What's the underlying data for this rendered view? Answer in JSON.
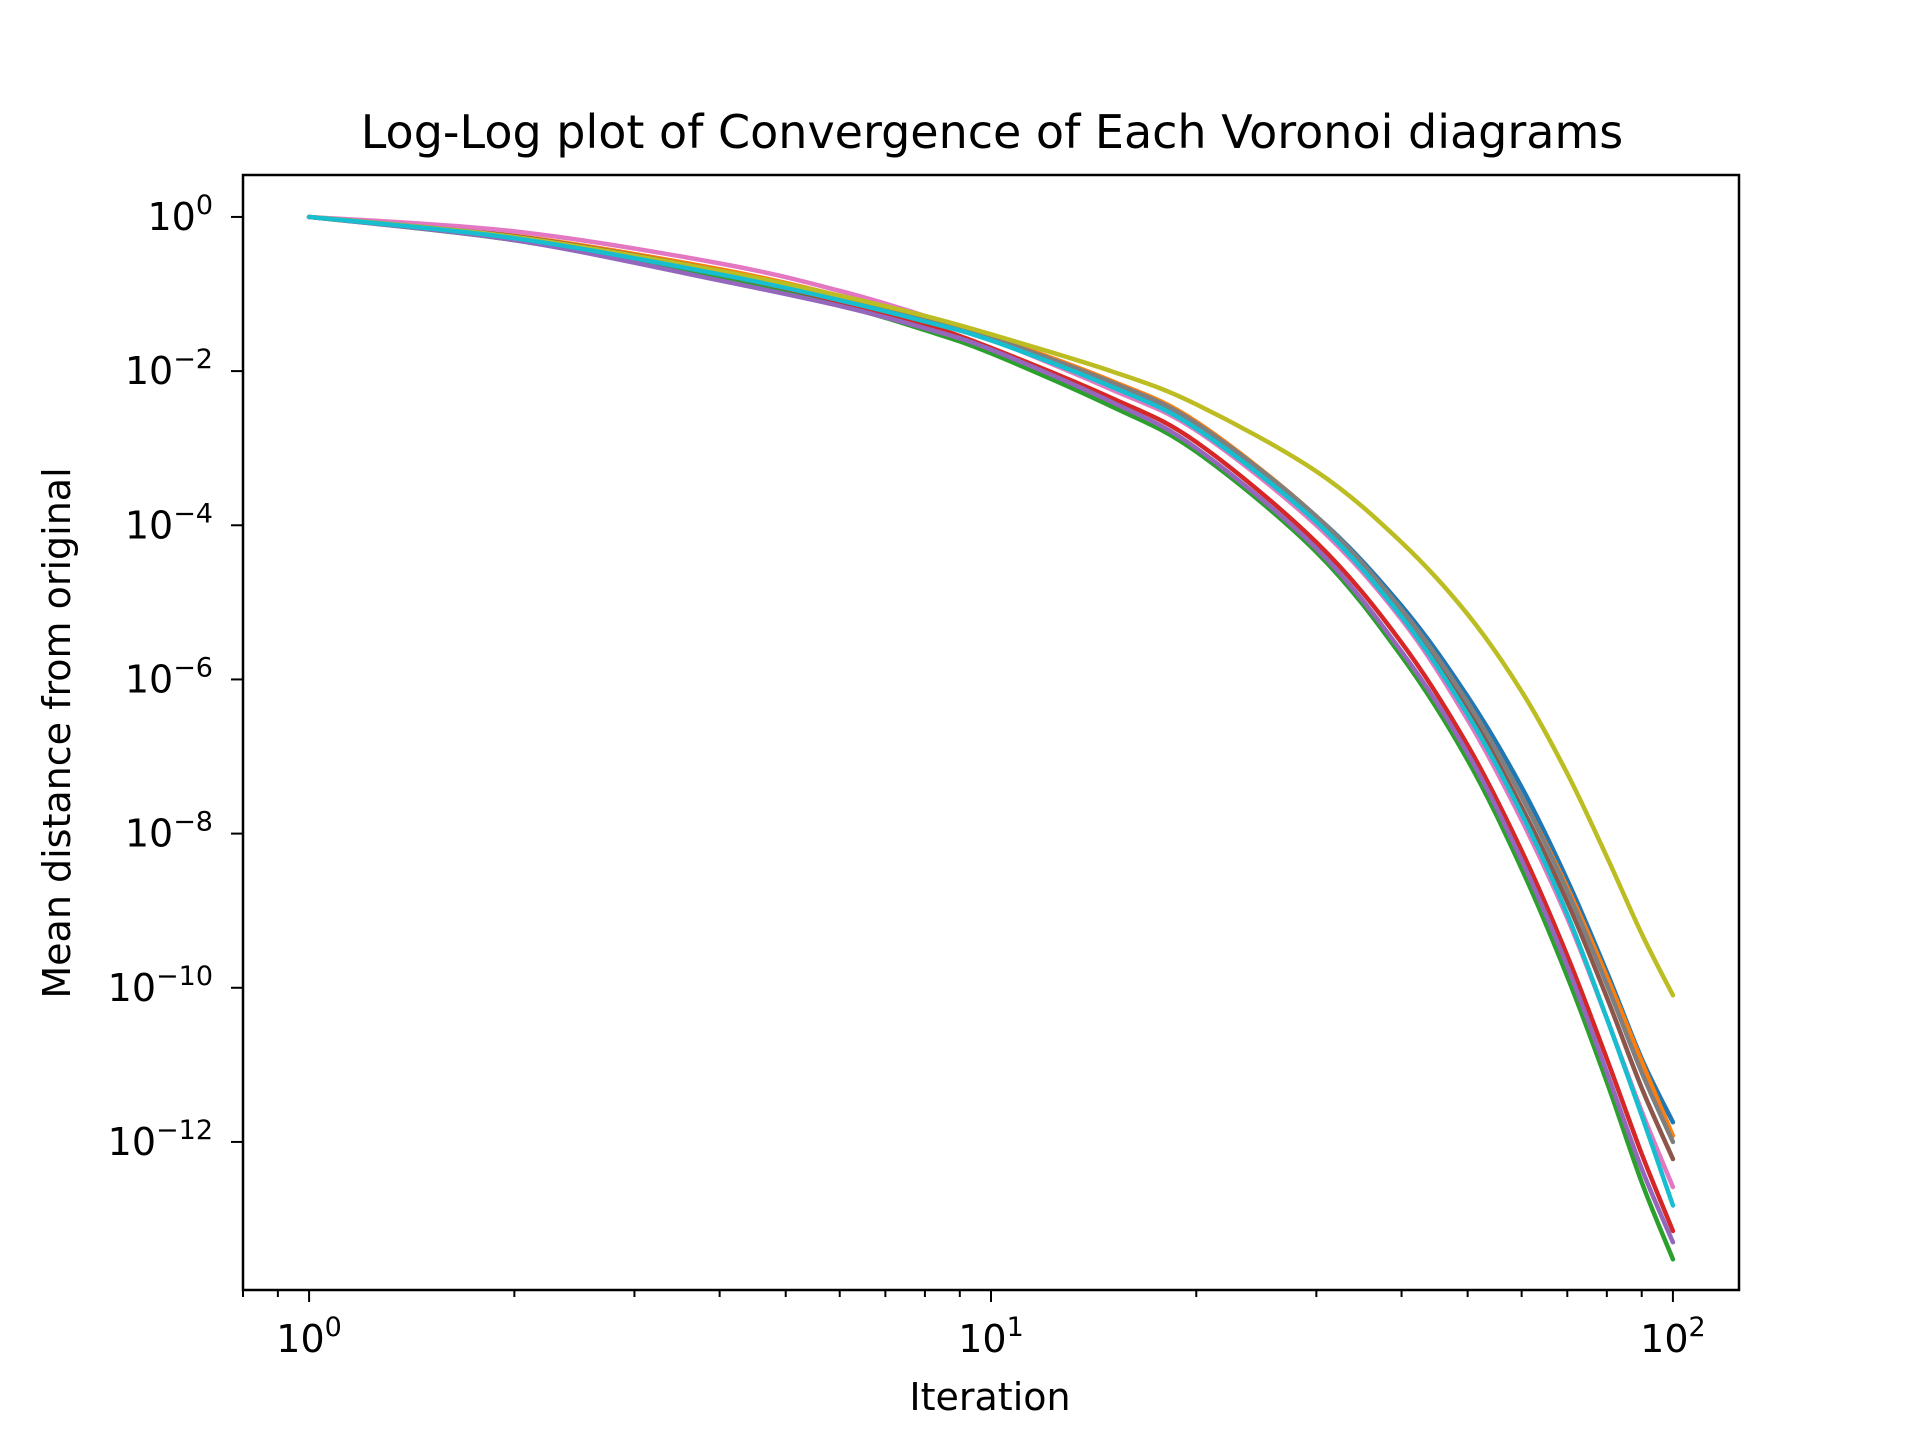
{
  "chart_data": {
    "type": "line",
    "title": "Log-Log plot of Convergence of Each Voronoi diagrams",
    "xlabel": "Iteration",
    "ylabel": "Mean distance from original",
    "xscale": "log",
    "yscale": "log",
    "xlim": [
      0.8,
      125
    ],
    "ylim": [
      1.2e-14,
      3.5
    ],
    "grid": false,
    "legend": "none",
    "x_ticks": [
      {
        "base": "10",
        "exp": "0",
        "value": 1
      },
      {
        "base": "10",
        "exp": "1",
        "value": 10
      },
      {
        "base": "10",
        "exp": "2",
        "value": 100
      }
    ],
    "y_ticks": [
      {
        "base": "10",
        "exp": "0",
        "value": 1
      },
      {
        "base": "10",
        "exp": "−2",
        "value": 0.01
      },
      {
        "base": "10",
        "exp": "−4",
        "value": 0.0001
      },
      {
        "base": "10",
        "exp": "−6",
        "value": 1e-06
      },
      {
        "base": "10",
        "exp": "−8",
        "value": 1e-08
      },
      {
        "base": "10",
        "exp": "−10",
        "value": 1e-10
      },
      {
        "base": "10",
        "exp": "−12",
        "value": 1e-12
      }
    ],
    "x": [
      1,
      2,
      4,
      6,
      8,
      10,
      15,
      20,
      30,
      40,
      50,
      60,
      70,
      80,
      90,
      100
    ],
    "series": [
      {
        "color": "#1f77b4",
        "values": [
          1,
          0.55,
          0.19,
          0.085,
          0.045,
          0.026,
          0.0068,
          0.0019,
          0.00013,
          9e-06,
          6e-07,
          4e-08,
          2.5e-09,
          1.6e-10,
          1.2e-11,
          1.8e-12
        ]
      },
      {
        "color": "#ff7f0e",
        "values": [
          1,
          0.57,
          0.21,
          0.095,
          0.05,
          0.028,
          0.0075,
          0.0022,
          0.00013,
          8e-06,
          5e-07,
          3e-08,
          2e-09,
          1.4e-10,
          1.1e-11,
          1.2e-12
        ]
      },
      {
        "color": "#2ca02c",
        "values": [
          1,
          0.5,
          0.16,
          0.072,
          0.034,
          0.017,
          0.0035,
          0.0009,
          4.5e-05,
          2e-06,
          9e-08,
          3.5e-09,
          1.4e-10,
          6e-12,
          3e-13,
          3e-14
        ]
      },
      {
        "color": "#d62728",
        "values": [
          1,
          0.53,
          0.18,
          0.08,
          0.04,
          0.02,
          0.0045,
          0.0012,
          6e-05,
          3e-06,
          1.4e-07,
          6e-09,
          2.6e-10,
          1.2e-11,
          7e-13,
          7e-14
        ]
      },
      {
        "color": "#9467bd",
        "values": [
          1,
          0.5,
          0.15,
          0.07,
          0.036,
          0.019,
          0.004,
          0.001,
          5e-05,
          2.3e-06,
          1.1e-07,
          4.5e-09,
          1.9e-10,
          8e-12,
          4.5e-13,
          5e-14
        ]
      },
      {
        "color": "#8c564b",
        "values": [
          1,
          0.56,
          0.2,
          0.09,
          0.048,
          0.027,
          0.007,
          0.002,
          0.00012,
          7e-06,
          4e-07,
          2.2e-08,
          1.3e-09,
          7.5e-11,
          5e-12,
          6e-13
        ]
      },
      {
        "color": "#e377c2",
        "values": [
          1,
          0.65,
          0.25,
          0.11,
          0.052,
          0.026,
          0.0058,
          0.0017,
          0.0001,
          6e-06,
          3e-07,
          1.5e-08,
          8e-10,
          4e-11,
          2.5e-12,
          2.6e-13
        ]
      },
      {
        "color": "#7f7f7f",
        "values": [
          1,
          0.55,
          0.19,
          0.088,
          0.047,
          0.027,
          0.0072,
          0.0021,
          0.00013,
          8e-06,
          5e-07,
          3e-08,
          1.8e-09,
          1.1e-10,
          8e-12,
          1e-12
        ]
      },
      {
        "color": "#bcbd22",
        "values": [
          1,
          0.55,
          0.2,
          0.095,
          0.052,
          0.03,
          0.01,
          0.0037,
          0.0005,
          6e-05,
          7e-06,
          7e-07,
          6e-08,
          5e-09,
          5e-10,
          8e-11
        ]
      },
      {
        "color": "#17becf",
        "values": [
          1,
          0.53,
          0.18,
          0.083,
          0.044,
          0.025,
          0.0063,
          0.0018,
          0.00011,
          6.5e-06,
          3.5e-07,
          1.8e-08,
          9e-10,
          4e-11,
          2.2e-12,
          1.5e-13
        ]
      }
    ]
  }
}
